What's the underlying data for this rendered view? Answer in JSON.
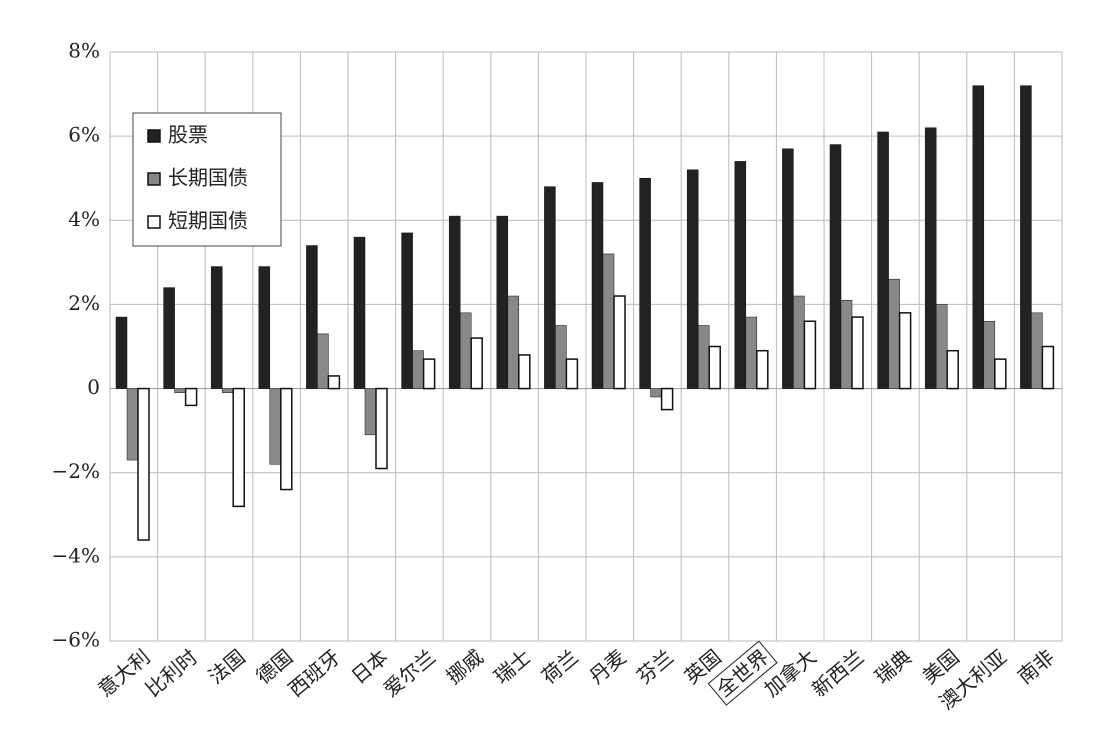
{
  "chart_data": {
    "type": "bar",
    "categories": [
      "意大利",
      "比利时",
      "法国",
      "德国",
      "西班牙",
      "日本",
      "爱尔兰",
      "挪威",
      "瑞士",
      "荷兰",
      "丹麦",
      "芬兰",
      "英国",
      "全世界",
      "加拿大",
      "新西兰",
      "瑞典",
      "美国",
      "澳大利亚",
      "南非"
    ],
    "series": [
      {
        "name": "股票",
        "color": "#222222",
        "values": [
          1.7,
          2.4,
          2.9,
          2.9,
          3.4,
          3.6,
          3.7,
          4.1,
          4.1,
          4.8,
          4.9,
          5.0,
          5.2,
          5.4,
          5.7,
          5.8,
          6.1,
          6.2,
          7.2,
          7.2
        ]
      },
      {
        "name": "长期国债",
        "color": "#888888",
        "values": [
          -1.7,
          -0.1,
          -0.1,
          -1.8,
          1.3,
          -1.1,
          0.9,
          1.8,
          2.2,
          1.5,
          3.2,
          -0.2,
          1.5,
          1.7,
          2.2,
          2.1,
          2.6,
          2.0,
          1.6,
          1.8
        ]
      },
      {
        "name": "短期国债",
        "color": "#ffffff",
        "values": [
          -3.6,
          -0.4,
          -2.8,
          -2.4,
          0.3,
          -1.9,
          0.7,
          1.2,
          0.8,
          0.7,
          2.2,
          -0.5,
          1.0,
          0.9,
          1.6,
          1.7,
          1.8,
          0.9,
          0.7,
          1.0
        ]
      }
    ],
    "ylim": [
      -6,
      8
    ],
    "yticks": [
      {
        "value": -6,
        "label": "−6%"
      },
      {
        "value": -4,
        "label": "−4%"
      },
      {
        "value": -2,
        "label": "−2%"
      },
      0,
      {
        "value": 2,
        "label": "2%"
      },
      {
        "value": 4,
        "label": "4%"
      },
      {
        "value": 6,
        "label": "6%"
      },
      {
        "value": 8,
        "label": "8%"
      }
    ],
    "grid": true,
    "legend": "upper left"
  }
}
